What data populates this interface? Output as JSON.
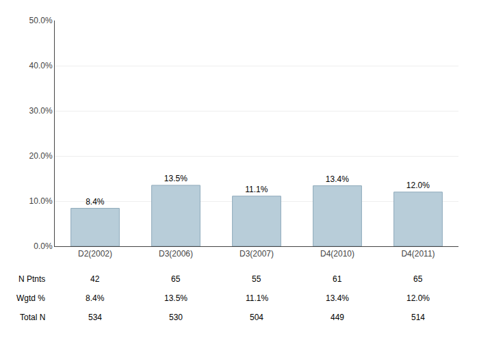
{
  "chart_data": {
    "type": "bar",
    "categories": [
      "D2(2002)",
      "D3(2006)",
      "D3(2007)",
      "D4(2010)",
      "D4(2011)"
    ],
    "values": [
      8.4,
      13.5,
      11.1,
      13.4,
      12.0
    ],
    "value_labels": [
      "8.4%",
      "13.5%",
      "11.1%",
      "13.4%",
      "12.0%"
    ],
    "data_labels": true,
    "color": "#b8cdd9",
    "ylim": [
      0,
      50
    ],
    "yticks": [
      {
        "value": 0,
        "label": "0.0%"
      },
      {
        "value": 10,
        "label": "10.0%"
      },
      {
        "value": 20,
        "label": "20.0%"
      },
      {
        "value": 30,
        "label": "30.0%"
      },
      {
        "value": 40,
        "label": "40.0%"
      },
      {
        "value": 50,
        "label": "50.0%"
      }
    ],
    "grid": true,
    "table": [
      {
        "name": "N Ptnts",
        "values": [
          42,
          65,
          55,
          61,
          65
        ]
      },
      {
        "name": "Wgtd %",
        "values": [
          8.4,
          13.5,
          11.1,
          13.4,
          12.0
        ],
        "value_labels": [
          "8.4%",
          "13.5%",
          "11.1%",
          "13.4%",
          "12.0%"
        ]
      },
      {
        "name": "Total N",
        "values": [
          534,
          530,
          504,
          449,
          514
        ]
      }
    ]
  }
}
